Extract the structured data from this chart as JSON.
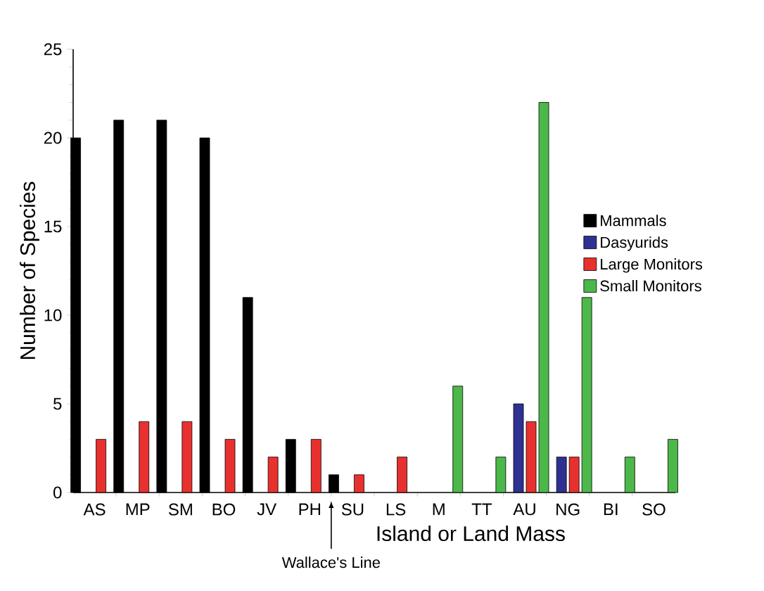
{
  "chart_data": {
    "type": "bar",
    "xlabel": "Island or Land Mass",
    "ylabel": "Number of Species",
    "categories": [
      "AS",
      "MP",
      "SM",
      "BO",
      "JV",
      "PH",
      "SU",
      "LS",
      "M",
      "TT",
      "AU",
      "NG",
      "BI",
      "SO"
    ],
    "series": [
      {
        "name": "Mammals",
        "color": "#000000",
        "values": [
          20,
          21,
          21,
          20,
          11,
          3,
          1,
          null,
          null,
          null,
          null,
          null,
          null,
          null
        ]
      },
      {
        "name": "Dasyurids",
        "color": "#2e3192",
        "values": [
          null,
          null,
          null,
          null,
          null,
          null,
          null,
          null,
          null,
          null,
          5,
          2,
          null,
          null
        ]
      },
      {
        "name": "Large Monitors",
        "color": "#e8312f",
        "values": [
          3,
          4,
          4,
          3,
          2,
          3,
          1,
          2,
          null,
          null,
          4,
          2,
          null,
          null
        ]
      },
      {
        "name": "Small Monitors",
        "color": "#4cb84a",
        "values": [
          null,
          null,
          null,
          null,
          null,
          null,
          null,
          null,
          6,
          2,
          22,
          11,
          2,
          3
        ]
      }
    ],
    "ylim": [
      0,
      25
    ],
    "yticks": [
      0,
      5,
      10,
      15,
      20,
      25
    ],
    "legend": "right",
    "annotations": [
      "Wallace's Line"
    ]
  }
}
